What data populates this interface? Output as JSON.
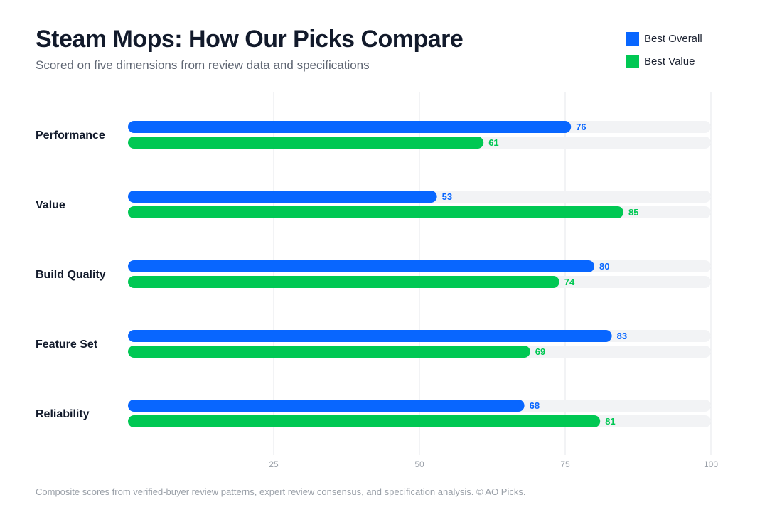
{
  "header": {
    "title": "Steam Mops: How Our Picks Compare",
    "subtitle": "Scored on five dimensions from review data and specifications"
  },
  "footnote": "Composite scores from verified-buyer review patterns, expert review consensus, and specification analysis. © AO Picks.",
  "colors": {
    "best_overall": "#0866ff",
    "best_value": "#00c853",
    "track": "#f2f3f5",
    "grid": "#e5e7eb",
    "text": "#121a2b"
  },
  "chart_data": {
    "type": "bar",
    "orientation": "horizontal",
    "title": "Steam Mops: How Our Picks Compare",
    "subtitle": "Scored on five dimensions from review data and specifications",
    "categories": [
      "Performance",
      "Value",
      "Build Quality",
      "Feature Set",
      "Reliability"
    ],
    "series": [
      {
        "name": "Best Overall",
        "color": "#0866ff",
        "values": [
          76,
          53,
          80,
          83,
          68
        ]
      },
      {
        "name": "Best Value",
        "color": "#00c853",
        "values": [
          61,
          85,
          74,
          69,
          81
        ]
      }
    ],
    "xlim": [
      0,
      100
    ],
    "xticks": [
      25,
      50,
      75,
      100
    ],
    "grid": true,
    "legend": "top-right"
  }
}
